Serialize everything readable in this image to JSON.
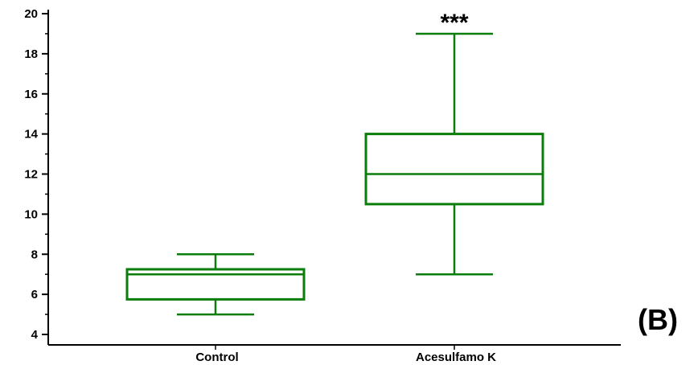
{
  "panel_label": "(B)",
  "chart_data": {
    "type": "box",
    "title": "",
    "xlabel": "",
    "ylabel": "",
    "ylim": [
      4,
      20
    ],
    "y_ticks": [
      4,
      6,
      8,
      10,
      12,
      14,
      16,
      18,
      20
    ],
    "y_tick_labels": [
      "4",
      "6",
      "8",
      "10",
      "12",
      "14",
      "16",
      "18",
      "20"
    ],
    "minor_tick_step": 1,
    "categories": [
      "Control",
      "Acesulfamo K"
    ],
    "boxes": [
      {
        "category": "Control",
        "min": 5,
        "q1": 5.75,
        "median": 7,
        "q3": 7.25,
        "max": 8,
        "annotation": ""
      },
      {
        "category": "Acesulfamo K",
        "min": 7,
        "q1": 10.5,
        "median": 12,
        "q3": 14,
        "max": 19,
        "annotation": "***"
      }
    ],
    "box_color": "#0a7d0a",
    "axis_color": "#000000",
    "grid": false,
    "legend": "none"
  }
}
